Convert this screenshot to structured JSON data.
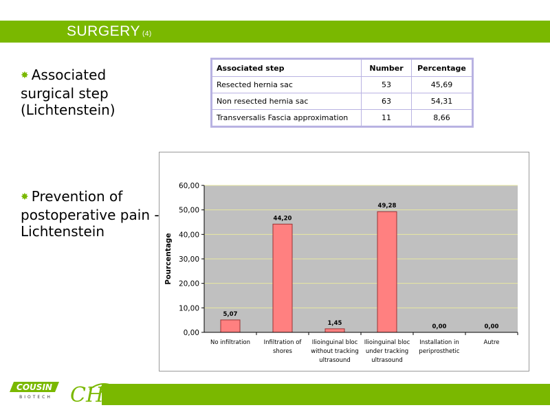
{
  "slide": {
    "title": "SURGERY",
    "title_number": "(4)"
  },
  "bullets": [
    {
      "lines": [
        "Associated",
        "surgical step",
        "(Lichtenstein)"
      ]
    },
    {
      "lines": [
        "Prevention of",
        "postoperative pain -",
        "Lichtenstein"
      ]
    }
  ],
  "table": {
    "headers": [
      "Associated step",
      "Number",
      "Percentage"
    ],
    "rows": [
      [
        "Resected hernia sac",
        "53",
        "45,69"
      ],
      [
        "Non resected hernia sac",
        "63",
        "54,31"
      ],
      [
        "Transversalis Fascia approximation",
        "11",
        "8,66"
      ]
    ]
  },
  "chart_data": {
    "type": "bar",
    "ylabel": "Pourcentage",
    "ylim": [
      0,
      60
    ],
    "yticks": [
      "0,00",
      "10,00",
      "20,00",
      "30,00",
      "40,00",
      "50,00",
      "60,00"
    ],
    "categories": [
      [
        "No infiltration"
      ],
      [
        "Infiltration of",
        "shores"
      ],
      [
        "Ilioinguinal bloc",
        "without tracking",
        "ultrasound"
      ],
      [
        "Ilioinguinal bloc",
        "under tracking",
        "ultrasound"
      ],
      [
        "Installation in",
        "periprosthetic"
      ],
      [
        "Autre"
      ]
    ],
    "values": [
      5.07,
      44.2,
      1.45,
      49.28,
      0.0,
      0.0
    ],
    "data_labels": [
      "5,07",
      "44,20",
      "1,45",
      "49,28",
      "0,00",
      "0,00"
    ],
    "grid": true,
    "colors": {
      "bar": "#ff8080",
      "bar_stroke": "#993333",
      "plot_bg": "#c0c0c0"
    }
  },
  "footer": {
    "logo_text": "COUSIN",
    "logo_subtext": "BIOTECH",
    "second_logo_text": "CH"
  },
  "colors": {
    "accent": "#7ab800",
    "table_border": "#b8b2e2"
  }
}
